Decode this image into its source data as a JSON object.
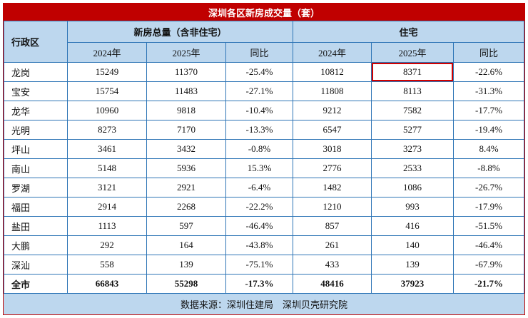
{
  "colors": {
    "title_bar_bg": "#c00000",
    "title_bar_text": "#ffffff",
    "header_bg": "#bdd7ee",
    "grid_line": "#2e75b6",
    "outer_border": "#c00000",
    "highlight_box": "#d00000",
    "text": "#111111"
  },
  "chart_data": {
    "type": "table",
    "title": "深圳各区新房成交量（套）",
    "header": {
      "district_label": "行政区",
      "group_total_label": "新房总量（含非住宅）",
      "group_residential_label": "住宅",
      "sub_labels": [
        "2024年",
        "2025年",
        "同比"
      ]
    },
    "rows": [
      {
        "district": "龙岗",
        "total_2024": 15249,
        "total_2025": 11370,
        "total_yoy": "-25.4%",
        "res_2024": 10812,
        "res_2025": 8371,
        "res_yoy": "-22.6%",
        "highlight": "res_2025"
      },
      {
        "district": "宝安",
        "total_2024": 15754,
        "total_2025": 11483,
        "total_yoy": "-27.1%",
        "res_2024": 11808,
        "res_2025": 8113,
        "res_yoy": "-31.3%"
      },
      {
        "district": "龙华",
        "total_2024": 10960,
        "total_2025": 9818,
        "total_yoy": "-10.4%",
        "res_2024": 9212,
        "res_2025": 7582,
        "res_yoy": "-17.7%"
      },
      {
        "district": "光明",
        "total_2024": 8273,
        "total_2025": 7170,
        "total_yoy": "-13.3%",
        "res_2024": 6547,
        "res_2025": 5277,
        "res_yoy": "-19.4%"
      },
      {
        "district": "坪山",
        "total_2024": 3461,
        "total_2025": 3432,
        "total_yoy": "-0.8%",
        "res_2024": 3018,
        "res_2025": 3273,
        "res_yoy": "8.4%"
      },
      {
        "district": "南山",
        "total_2024": 5148,
        "total_2025": 5936,
        "total_yoy": "15.3%",
        "res_2024": 2776,
        "res_2025": 2533,
        "res_yoy": "-8.8%"
      },
      {
        "district": "罗湖",
        "total_2024": 3121,
        "total_2025": 2921,
        "total_yoy": "-6.4%",
        "res_2024": 1482,
        "res_2025": 1086,
        "res_yoy": "-26.7%"
      },
      {
        "district": "福田",
        "total_2024": 2914,
        "total_2025": 2268,
        "total_yoy": "-22.2%",
        "res_2024": 1210,
        "res_2025": 993,
        "res_yoy": "-17.9%"
      },
      {
        "district": "盐田",
        "total_2024": 1113,
        "total_2025": 597,
        "total_yoy": "-46.4%",
        "res_2024": 857,
        "res_2025": 416,
        "res_yoy": "-51.5%"
      },
      {
        "district": "大鹏",
        "total_2024": 292,
        "total_2025": 164,
        "total_yoy": "-43.8%",
        "res_2024": 261,
        "res_2025": 140,
        "res_yoy": "-46.4%"
      },
      {
        "district": "深汕",
        "total_2024": 558,
        "total_2025": 139,
        "total_yoy": "-75.1%",
        "res_2024": 433,
        "res_2025": 139,
        "res_yoy": "-67.9%"
      }
    ],
    "total_row": {
      "district": "全市",
      "total_2024": 66843,
      "total_2025": 55298,
      "total_yoy": "-17.3%",
      "res_2024": 48416,
      "res_2025": 37923,
      "res_yoy": "-21.7%"
    },
    "source": "数据来源：深圳住建局　深圳贝壳研究院"
  }
}
